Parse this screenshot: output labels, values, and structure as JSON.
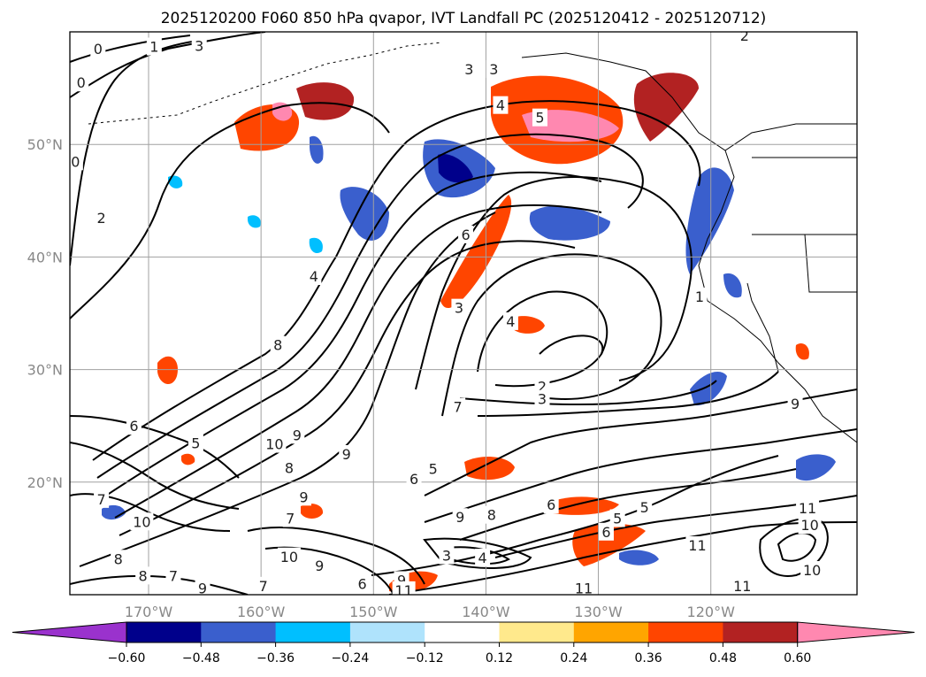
{
  "chart_data": {
    "type": "contour map",
    "title": "2025120200 F060 850 hPa qvapor, IVT Landfall PC (2025120412 - 2025120712)",
    "x_ticks": [
      "170°W",
      "160°W",
      "150°W",
      "140°W",
      "130°W",
      "120°W"
    ],
    "x_tick_values": [
      -170,
      -160,
      -150,
      -140,
      -130,
      -120
    ],
    "y_ticks": [
      "20°N",
      "30°N",
      "40°N",
      "50°N"
    ],
    "y_tick_values": [
      20,
      30,
      40,
      50
    ],
    "xlim": [
      -177,
      -107
    ],
    "ylim": [
      10,
      60
    ],
    "grid": true,
    "colorbar": {
      "ticks": [
        "−0.60",
        "−0.48",
        "−0.36",
        "−0.24",
        "−0.12",
        "0.12",
        "0.24",
        "0.36",
        "0.48",
        "0.60"
      ],
      "colors": [
        "#9a32cd",
        "#00008b",
        "#3a5fcd",
        "#00bfff",
        "#afe3fc",
        "#ffffff",
        "#ffe98c",
        "#ffa500",
        "#ff4500",
        "#b22222",
        "#ff88b0"
      ],
      "extend": "both"
    },
    "contour_labels": [
      {
        "text": "0",
        "lon": -174.5,
        "lat": 58.5
      },
      {
        "text": "1",
        "lon": -169.5,
        "lat": 58.7
      },
      {
        "text": "3",
        "lon": -165.5,
        "lat": 58.8
      },
      {
        "text": "0",
        "lon": -176,
        "lat": 55.5
      },
      {
        "text": "0",
        "lon": -176.5,
        "lat": 48.5
      },
      {
        "text": "2",
        "lon": -174.2,
        "lat": 43.5
      },
      {
        "text": "4",
        "lon": -155.3,
        "lat": 38.3
      },
      {
        "text": "3",
        "lon": -141.5,
        "lat": 56.7
      },
      {
        "text": "3",
        "lon": -139.3,
        "lat": 56.7
      },
      {
        "text": "4",
        "lon": -138.7,
        "lat": 53.5
      },
      {
        "text": "5",
        "lon": -135.2,
        "lat": 52.4
      },
      {
        "text": "2",
        "lon": -117,
        "lat": 59.7
      },
      {
        "text": "6",
        "lon": -141.8,
        "lat": 42.0
      },
      {
        "text": "3",
        "lon": -142.4,
        "lat": 35.5
      },
      {
        "text": "4",
        "lon": -137.8,
        "lat": 34.3
      },
      {
        "text": "1",
        "lon": -121.0,
        "lat": 36.5
      },
      {
        "text": "2",
        "lon": -135.0,
        "lat": 28.5
      },
      {
        "text": "3",
        "lon": -135.0,
        "lat": 27.4
      },
      {
        "text": "6",
        "lon": -171.3,
        "lat": 25.0
      },
      {
        "text": "5",
        "lon": -165.8,
        "lat": 23.5
      },
      {
        "text": "8",
        "lon": -158.5,
        "lat": 32.2
      },
      {
        "text": "10",
        "lon": -158.8,
        "lat": 23.4
      },
      {
        "text": "9",
        "lon": -156.8,
        "lat": 24.2
      },
      {
        "text": "8",
        "lon": -157.5,
        "lat": 21.3
      },
      {
        "text": "9",
        "lon": -156.2,
        "lat": 18.7
      },
      {
        "text": "9",
        "lon": -152.4,
        "lat": 22.5
      },
      {
        "text": "7",
        "lon": -174.2,
        "lat": 18.5
      },
      {
        "text": "10",
        "lon": -170.6,
        "lat": 16.5
      },
      {
        "text": "7",
        "lon": -157.4,
        "lat": 16.8
      },
      {
        "text": "8",
        "lon": -172.7,
        "lat": 13.2
      },
      {
        "text": "8",
        "lon": -170.5,
        "lat": 11.7
      },
      {
        "text": "7",
        "lon": -167.8,
        "lat": 11.7
      },
      {
        "text": "9",
        "lon": -165.2,
        "lat": 10.6
      },
      {
        "text": "10",
        "lon": -157.5,
        "lat": 13.4
      },
      {
        "text": "9",
        "lon": -154.8,
        "lat": 12.6
      },
      {
        "text": "6",
        "lon": -151.0,
        "lat": 11.0
      },
      {
        "text": "7",
        "lon": -159.8,
        "lat": 10.8
      },
      {
        "text": "9",
        "lon": -147.5,
        "lat": 11.3
      },
      {
        "text": "11",
        "lon": -147.3,
        "lat": 10.4
      },
      {
        "text": "3",
        "lon": -143.5,
        "lat": 13.5
      },
      {
        "text": "4",
        "lon": -140.3,
        "lat": 13.3
      },
      {
        "text": "5",
        "lon": -144.7,
        "lat": 21.2
      },
      {
        "text": "6",
        "lon": -146.4,
        "lat": 20.3
      },
      {
        "text": "7",
        "lon": -142.5,
        "lat": 26.7
      },
      {
        "text": "9",
        "lon": -142.3,
        "lat": 16.9
      },
      {
        "text": "8",
        "lon": -139.5,
        "lat": 17.1
      },
      {
        "text": "6",
        "lon": -134.2,
        "lat": 18.0
      },
      {
        "text": "5",
        "lon": -128.3,
        "lat": 16.8
      },
      {
        "text": "5",
        "lon": -125.9,
        "lat": 17.8
      },
      {
        "text": "6",
        "lon": -129.3,
        "lat": 15.6
      },
      {
        "text": "11",
        "lon": -121.2,
        "lat": 14.4
      },
      {
        "text": "11",
        "lon": -111.4,
        "lat": 17.7
      },
      {
        "text": "10",
        "lon": -111.2,
        "lat": 16.2
      },
      {
        "text": "10",
        "lon": -111.0,
        "lat": 12.2
      },
      {
        "text": "11",
        "lon": -117.2,
        "lat": 10.8
      },
      {
        "text": "11",
        "lon": -131.3,
        "lat": 10.6
      },
      {
        "text": "9",
        "lon": -112.5,
        "lat": 27.0
      }
    ]
  }
}
